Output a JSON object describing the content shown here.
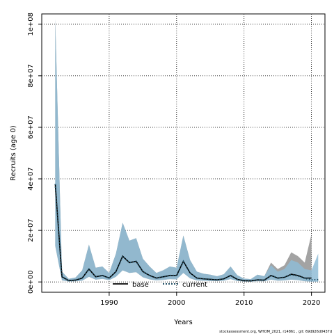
{
  "chart_data": {
    "type": "area",
    "xlabel": "Years",
    "ylabel": "Recruits (age 0)",
    "xlim": [
      1980,
      2022
    ],
    "ylim": [
      -4000000,
      104000000
    ],
    "x_ticks": [
      1990,
      2000,
      2010,
      2020
    ],
    "x_tick_labels": [
      "1990",
      "2000",
      "2010",
      "2020"
    ],
    "y_ticks": [
      0,
      20000000,
      40000000,
      60000000,
      80000000,
      100000000
    ],
    "y_tick_labels": [
      "0e+00",
      "2e+07",
      "4e+07",
      "6e+07",
      "8e+07",
      "1e+08"
    ],
    "grid": true,
    "legend_position": "bottom",
    "colors": {
      "base_band": "#a3a3a3",
      "current_band": "#8fbcd6",
      "base_line": "#000000",
      "current_line": "#1f4e63"
    },
    "series": [
      {
        "name": "base",
        "line_style": "solid",
        "x": [
          1982,
          1983,
          1984,
          1985,
          1986,
          1987,
          1988,
          1989,
          1990,
          1991,
          1992,
          1993,
          1994,
          1995,
          1996,
          1997,
          1998,
          1999,
          2000,
          2001,
          2002,
          2003,
          2004,
          2005,
          2006,
          2007,
          2008,
          2009,
          2010,
          2011,
          2012,
          2013,
          2014,
          2015,
          2016,
          2017,
          2018,
          2019,
          2020
        ],
        "values": [
          38000000,
          2000000,
          500000,
          700000,
          1500000,
          5000000,
          2000000,
          2500000,
          1500000,
          4000000,
          10000000,
          7500000,
          8000000,
          4000000,
          2500000,
          1500000,
          2000000,
          2500000,
          2500000,
          8000000,
          3500000,
          1500000,
          1200000,
          1000000,
          800000,
          1200000,
          2500000,
          1000000,
          500000,
          400000,
          800000,
          700000,
          2500000,
          1500000,
          1800000,
          3000000,
          2500000,
          1500000,
          1500000
        ],
        "lower": [
          14000000,
          600000,
          200000,
          250000,
          500000,
          2000000,
          900000,
          1200000,
          700000,
          2000000,
          4500000,
          3500000,
          3800000,
          1800000,
          1000000,
          600000,
          800000,
          1100000,
          1000000,
          3500000,
          1400000,
          600000,
          500000,
          400000,
          350000,
          500000,
          1100000,
          400000,
          200000,
          150000,
          300000,
          250000,
          900000,
          500000,
          600000,
          900000,
          700000,
          300000,
          200000
        ],
        "upper": [
          102000000,
          4000000,
          1200000,
          1700000,
          4500000,
          14500000,
          5500000,
          6000000,
          3500000,
          11000000,
          23000000,
          16000000,
          17000000,
          9000000,
          6000000,
          3500000,
          4500000,
          6000000,
          5500000,
          18000000,
          8500000,
          4000000,
          3200000,
          2800000,
          2200000,
          3000000,
          6000000,
          2600000,
          1300000,
          1100000,
          2800000,
          2200000,
          7500000,
          5000000,
          6500000,
          11500000,
          10000000,
          7500000,
          18500000
        ]
      },
      {
        "name": "current",
        "line_style": "dotted",
        "x": [
          1982,
          1983,
          1984,
          1985,
          1986,
          1987,
          1988,
          1989,
          1990,
          1991,
          1992,
          1993,
          1994,
          1995,
          1996,
          1997,
          1998,
          1999,
          2000,
          2001,
          2002,
          2003,
          2004,
          2005,
          2006,
          2007,
          2008,
          2009,
          2010,
          2011,
          2012,
          2013,
          2014,
          2015,
          2016,
          2017,
          2018,
          2019,
          2020,
          2021
        ],
        "values": [
          38000000,
          2000000,
          500000,
          700000,
          1500000,
          5000000,
          2000000,
          2500000,
          1500000,
          4000000,
          10000000,
          7500000,
          8000000,
          4000000,
          2500000,
          1500000,
          2000000,
          2500000,
          2500000,
          8000000,
          3500000,
          1500000,
          1200000,
          1000000,
          800000,
          1200000,
          2500000,
          1000000,
          500000,
          400000,
          800000,
          700000,
          2500000,
          1500000,
          1800000,
          2800000,
          2300000,
          1400000,
          800000,
          900000
        ],
        "lower": [
          14000000,
          600000,
          200000,
          250000,
          500000,
          2000000,
          900000,
          1200000,
          700000,
          2000000,
          4500000,
          3500000,
          3800000,
          1800000,
          1000000,
          600000,
          800000,
          1100000,
          1000000,
          3500000,
          1400000,
          600000,
          500000,
          400000,
          350000,
          500000,
          1100000,
          400000,
          200000,
          150000,
          300000,
          250000,
          900000,
          500000,
          600000,
          900000,
          700000,
          300000,
          100000,
          100000
        ],
        "upper": [
          102000000,
          4000000,
          1200000,
          1700000,
          4500000,
          14500000,
          5500000,
          6000000,
          3500000,
          11000000,
          23000000,
          16000000,
          17000000,
          9000000,
          6000000,
          3500000,
          4500000,
          6000000,
          5500000,
          18000000,
          8500000,
          4000000,
          3200000,
          2800000,
          2200000,
          3000000,
          6000000,
          2600000,
          1300000,
          1100000,
          2800000,
          2200000,
          6500000,
          4000000,
          5000000,
          8500000,
          7500000,
          5000000,
          4500000,
          11000000
        ]
      }
    ]
  },
  "footer_text": "stockassessment.org, WHOM_2021, r14861 , git: 69d926d0437d"
}
